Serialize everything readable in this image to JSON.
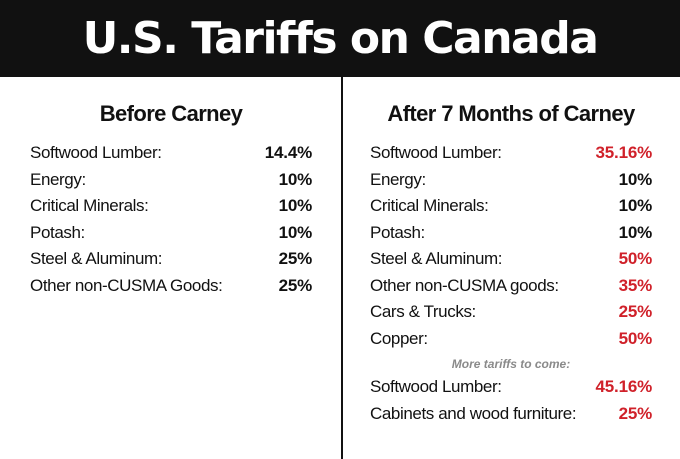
{
  "banner": {
    "title": "U.S. Tariffs on Canada"
  },
  "colors": {
    "accent_red": "#d0212a",
    "banner_bg": "#111111",
    "note_gray": "#8a8a8a"
  },
  "before": {
    "heading": "Before Carney",
    "rows": [
      {
        "label": "Softwood Lumber:",
        "value": "14.4%"
      },
      {
        "label": "Energy:",
        "value": "10%"
      },
      {
        "label": "Critical Minerals:",
        "value": "10%"
      },
      {
        "label": "Potash:",
        "value": "10%"
      },
      {
        "label": "Steel & Aluminum:",
        "value": "25%"
      },
      {
        "label": "Other non-CUSMA Goods:",
        "value": "25%"
      }
    ]
  },
  "after": {
    "heading": "After 7 Months of Carney",
    "rows": [
      {
        "label": "Softwood Lumber:",
        "value": "35.16%",
        "highlight": true
      },
      {
        "label": "Energy:",
        "value": "10%",
        "highlight": false
      },
      {
        "label": "Critical Minerals:",
        "value": "10%",
        "highlight": false
      },
      {
        "label": "Potash:",
        "value": "10%",
        "highlight": false
      },
      {
        "label": "Steel & Aluminum:",
        "value": "50%",
        "highlight": true
      },
      {
        "label": "Other non-CUSMA goods:",
        "value": "35%",
        "highlight": true
      },
      {
        "label": "Cars & Trucks:",
        "value": "25%",
        "highlight": true
      },
      {
        "label": "Copper:",
        "value": "50%",
        "highlight": true
      }
    ],
    "note": "More tariffs to come:",
    "future_rows": [
      {
        "label": "Softwood Lumber:",
        "value": "45.16%",
        "highlight": true
      },
      {
        "label": "Cabinets and wood furniture:",
        "value": "25%",
        "highlight": true
      }
    ]
  }
}
